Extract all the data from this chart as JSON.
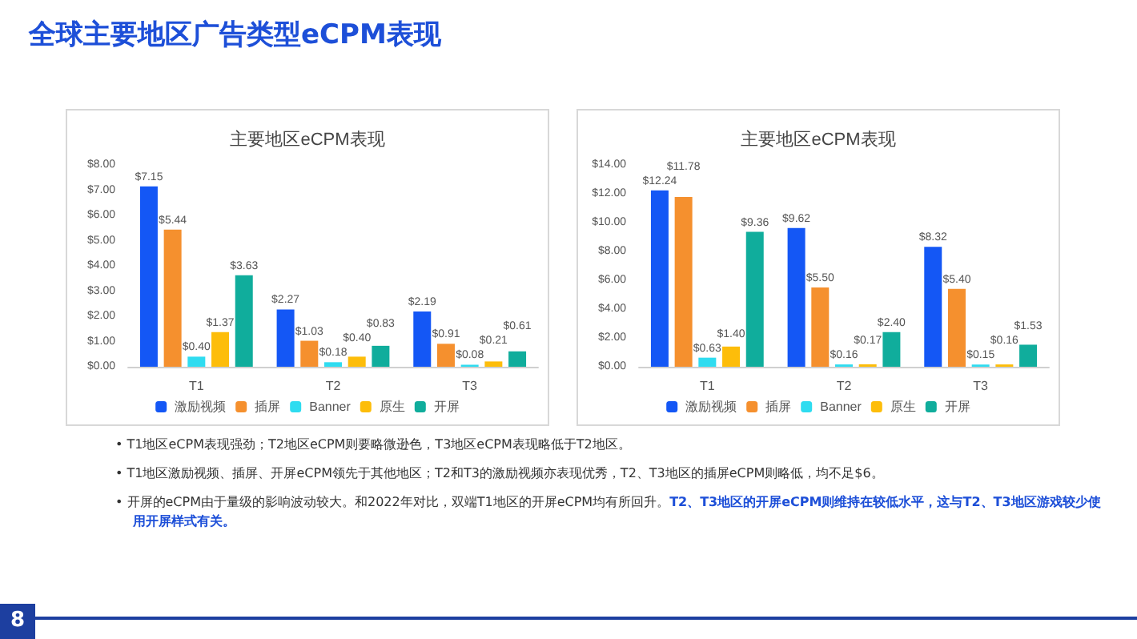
{
  "chart_data": [
    {
      "type": "bar",
      "title": "主要地区eCPM表现",
      "categories": [
        "T1",
        "T2",
        "T3"
      ],
      "ylim": [
        0,
        8
      ],
      "yticks": [
        {
          "value": 0,
          "label": "$0.00"
        },
        {
          "value": 1,
          "label": "$1.00"
        },
        {
          "value": 2,
          "label": "$2.00"
        },
        {
          "value": 3,
          "label": "$3.00"
        },
        {
          "value": 4,
          "label": "$4.00"
        },
        {
          "value": 5,
          "label": "$5.00"
        },
        {
          "value": 6,
          "label": "$6.00"
        },
        {
          "value": 7,
          "label": "$7.00"
        },
        {
          "value": 8,
          "label": "$8.00"
        }
      ],
      "grid": false,
      "legend": "bottom",
      "series": [
        {
          "name": "激励视频",
          "color": "#1457f5",
          "values": [
            7.15,
            2.27,
            2.19
          ],
          "value_labels": [
            "$7.15",
            "$2.27",
            "$2.19"
          ]
        },
        {
          "name": "插屏",
          "color": "#f5902e",
          "values": [
            5.44,
            1.03,
            0.91
          ],
          "value_labels": [
            "$5.44",
            "$1.03",
            "$0.91"
          ]
        },
        {
          "name": "Banner",
          "color": "#2fdcf0",
          "values": [
            0.4,
            0.18,
            0.08
          ],
          "value_labels": [
            "$0.40",
            "$0.18",
            "$0.08"
          ]
        },
        {
          "name": "原生",
          "color": "#fdbd0a",
          "values": [
            1.37,
            0.4,
            0.21
          ],
          "value_labels": [
            "$1.37",
            "$0.40",
            "$0.21"
          ]
        },
        {
          "name": "开屏",
          "color": "#10ad9c",
          "values": [
            3.63,
            0.83,
            0.61
          ],
          "value_labels": [
            "$3.63",
            "$0.83",
            "$0.61"
          ]
        }
      ]
    },
    {
      "type": "bar",
      "title": "主要地区eCPM表现",
      "categories": [
        "T1",
        "T2",
        "T3"
      ],
      "ylim": [
        0,
        14
      ],
      "yticks": [
        {
          "value": 0,
          "label": "$0.00"
        },
        {
          "value": 2,
          "label": "$2.00"
        },
        {
          "value": 4,
          "label": "$4.00"
        },
        {
          "value": 6,
          "label": "$6.00"
        },
        {
          "value": 8,
          "label": "$8.00"
        },
        {
          "value": 10,
          "label": "$10.00"
        },
        {
          "value": 12,
          "label": "$12.00"
        },
        {
          "value": 14,
          "label": "$14.00"
        }
      ],
      "grid": false,
      "legend": "bottom",
      "series": [
        {
          "name": "激励视频",
          "color": "#1457f5",
          "values": [
            12.24,
            9.62,
            8.32
          ],
          "value_labels": [
            "$12.24",
            "$9.62",
            "$8.32"
          ]
        },
        {
          "name": "插屏",
          "color": "#f5902e",
          "values": [
            11.78,
            5.5,
            5.4
          ],
          "value_labels": [
            "$11.78",
            "$5.50",
            "$5.40"
          ]
        },
        {
          "name": "Banner",
          "color": "#2fdcf0",
          "values": [
            0.63,
            0.16,
            0.15
          ],
          "value_labels": [
            "$0.63",
            "$0.16",
            "$0.15"
          ]
        },
        {
          "name": "原生",
          "color": "#fdbd0a",
          "values": [
            1.4,
            0.17,
            0.16
          ],
          "value_labels": [
            "$1.40",
            "$0.17",
            "$0.16"
          ]
        },
        {
          "name": "开屏",
          "color": "#10ad9c",
          "values": [
            9.36,
            2.4,
            1.53
          ],
          "value_labels": [
            "$9.36",
            "$2.40",
            "$1.53"
          ]
        }
      ]
    },
    {
      "type": "other",
      "title": "全球主要地区广告类型eCPM表现",
      "annotations": [
        "• T1地区eCPM表现强劲；T2地区eCPM则要略微逊色，T3地区eCPM表现略低于T2地区。",
        "• T1地区激励视频、插屏、开屏eCPM领先于其他地区；T2和T3的激励视频亦表现优秀，T2、T3地区的插屏eCPM则略低，均不足$6。",
        "• 开屏的eCPM由于量级的影响波动较大。和2022年对比，双端T1地区的开屏eCPM均有所回升。",
        "T2、T3地区的开屏eCPM则维持在较低水平，这与T2、T3地区游戏较少使用开屏样式有关。",
        "8"
      ]
    }
  ]
}
